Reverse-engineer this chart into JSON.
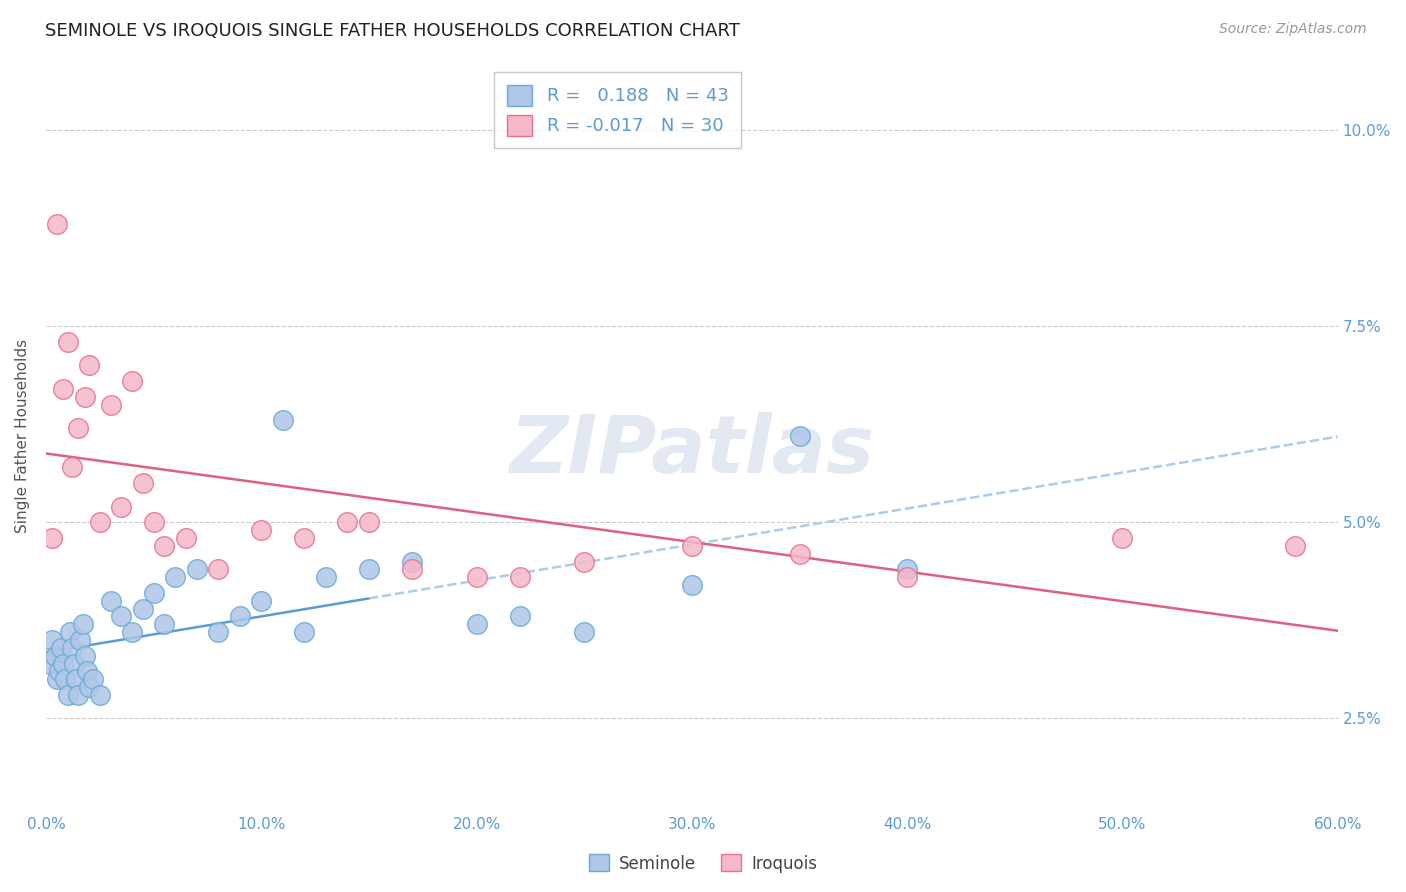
{
  "title": "SEMINOLE VS IROQUOIS SINGLE FATHER HOUSEHOLDS CORRELATION CHART",
  "source": "Source: ZipAtlas.com",
  "xlabel_vals": [
    0.0,
    10.0,
    20.0,
    30.0,
    40.0,
    50.0,
    60.0
  ],
  "ylabel": "Single Father Households",
  "ylabel_vals": [
    2.5,
    5.0,
    7.5,
    10.0
  ],
  "xlim": [
    0,
    60
  ],
  "ylim": [
    1.3,
    10.9
  ],
  "seminole_color": "#aec6e8",
  "iroquois_color": "#f4b8c8",
  "seminole_edge_color": "#6aaad4",
  "iroquois_edge_color": "#e87090",
  "seminole_trend_color": "#5b9bd5",
  "iroquois_trend_color": "#e06080",
  "seminole_trend_dash_color": "#aaccee",
  "R_seminole": 0.188,
  "N_seminole": 43,
  "R_iroquois": -0.017,
  "N_iroquois": 30,
  "legend_label_seminole": "Seminole",
  "legend_label_iroquois": "Iroquois",
  "seminole_x": [
    0.2,
    0.3,
    0.4,
    0.5,
    0.6,
    0.7,
    0.8,
    0.9,
    1.0,
    1.1,
    1.2,
    1.3,
    1.4,
    1.5,
    1.6,
    1.7,
    1.8,
    1.9,
    2.0,
    2.2,
    2.5,
    3.0,
    3.5,
    4.0,
    4.5,
    5.0,
    5.5,
    6.0,
    7.0,
    8.0,
    9.0,
    10.0,
    11.0,
    12.0,
    13.0,
    15.0,
    17.0,
    20.0,
    22.0,
    25.0,
    30.0,
    35.0,
    40.0
  ],
  "seminole_y": [
    3.2,
    3.5,
    3.3,
    3.0,
    3.1,
    3.4,
    3.2,
    3.0,
    2.8,
    3.6,
    3.4,
    3.2,
    3.0,
    2.8,
    3.5,
    3.7,
    3.3,
    3.1,
    2.9,
    3.0,
    2.8,
    4.0,
    3.8,
    3.6,
    3.9,
    4.1,
    3.7,
    4.3,
    4.4,
    3.6,
    3.8,
    4.0,
    6.3,
    3.6,
    4.3,
    4.4,
    4.5,
    3.7,
    3.8,
    3.6,
    4.2,
    6.1,
    4.4
  ],
  "iroquois_x": [
    0.3,
    0.5,
    0.8,
    1.0,
    1.2,
    1.5,
    1.8,
    2.0,
    2.5,
    3.0,
    3.5,
    4.0,
    4.5,
    5.0,
    5.5,
    6.5,
    8.0,
    10.0,
    12.0,
    14.0,
    15.0,
    17.0,
    20.0,
    22.0,
    25.0,
    30.0,
    35.0,
    40.0,
    50.0,
    58.0
  ],
  "iroquois_y": [
    4.8,
    8.8,
    6.7,
    7.3,
    5.7,
    6.2,
    6.6,
    7.0,
    5.0,
    6.5,
    5.2,
    6.8,
    5.5,
    5.0,
    4.7,
    4.8,
    4.4,
    4.9,
    4.8,
    5.0,
    5.0,
    4.4,
    4.3,
    4.3,
    4.5,
    4.7,
    4.6,
    4.3,
    4.8,
    4.7
  ],
  "watermark_text": "ZIPatlas",
  "background_color": "#ffffff",
  "grid_color": "#cccccc",
  "title_fontsize": 13,
  "tick_label_color": "#5b9bd5"
}
